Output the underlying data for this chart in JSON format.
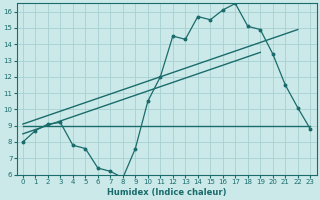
{
  "xlabel": "Humidex (Indice chaleur)",
  "bg_color": "#cce9e9",
  "line_color": "#1a6b6b",
  "grid_color": "#a8d0d0",
  "xlim": [
    -0.5,
    23.5
  ],
  "ylim": [
    6,
    16.5
  ],
  "xticks": [
    0,
    1,
    2,
    3,
    4,
    5,
    6,
    7,
    8,
    9,
    10,
    11,
    12,
    13,
    14,
    15,
    16,
    17,
    18,
    19,
    20,
    21,
    22,
    23
  ],
  "yticks": [
    6,
    7,
    8,
    9,
    10,
    11,
    12,
    13,
    14,
    15,
    16
  ],
  "series1_x": [
    0,
    1,
    2,
    3,
    4,
    5,
    6,
    7,
    8,
    9,
    10,
    11,
    12,
    13,
    14,
    15,
    16,
    17,
    18,
    19,
    20,
    21,
    22,
    23
  ],
  "series1_y": [
    8.0,
    8.7,
    9.1,
    9.2,
    7.8,
    7.6,
    6.4,
    6.2,
    5.8,
    7.6,
    10.5,
    12.0,
    14.5,
    14.3,
    15.7,
    15.5,
    16.1,
    16.5,
    15.1,
    14.9,
    13.4,
    11.5,
    10.1,
    8.8
  ],
  "series2_x": [
    0,
    23
  ],
  "series2_y": [
    9.0,
    9.0
  ],
  "series3_x": [
    0,
    19
  ],
  "series3_y": [
    8.5,
    13.5
  ],
  "series4_x": [
    0,
    22
  ],
  "series4_y": [
    9.1,
    14.9
  ],
  "tick_fontsize": 5.0,
  "xlabel_fontsize": 6.0
}
